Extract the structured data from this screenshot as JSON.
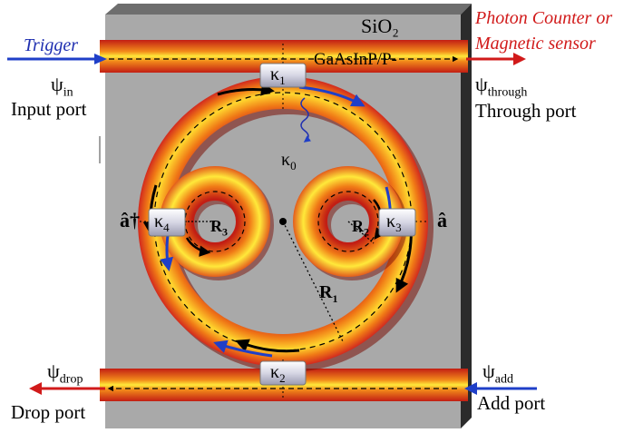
{
  "labels": {
    "substrate": "SiO₂",
    "material": "GaAsInP/P-",
    "trigger": "Trigger",
    "detector_line1": "Photon Counter or",
    "detector_line2": "Magnetic sensor",
    "psi": "ψ",
    "psi_in_sub": "in",
    "input_port": "Input port",
    "psi_through_sub": "through",
    "through_port": "Through port",
    "psi_drop_sub": "drop",
    "drop_port": "Drop port",
    "psi_add_sub": "add",
    "add_port": "Add port",
    "kappa": "κ",
    "kappa1_sub": "1",
    "kappa2_sub": "2",
    "kappa3_sub": "3",
    "kappa4_sub": "4",
    "kappa0_sub": "0",
    "a_hat": "â",
    "a_hat_dagger": "â†",
    "R": "R",
    "R1_sub": "1",
    "R2_sub": "2",
    "R3_sub": "3"
  },
  "colors": {
    "substrate": "#a9a9a9",
    "substrate_edge": "#2b2b2b",
    "ring_outer": "#d22a1e",
    "ring_mid": "#f28a1a",
    "ring_inner": "#ffe93a",
    "trigger_arrow": "#1f3fc8",
    "output_arrow": "#d11a1a",
    "coupler": "#d8d8e8"
  }
}
